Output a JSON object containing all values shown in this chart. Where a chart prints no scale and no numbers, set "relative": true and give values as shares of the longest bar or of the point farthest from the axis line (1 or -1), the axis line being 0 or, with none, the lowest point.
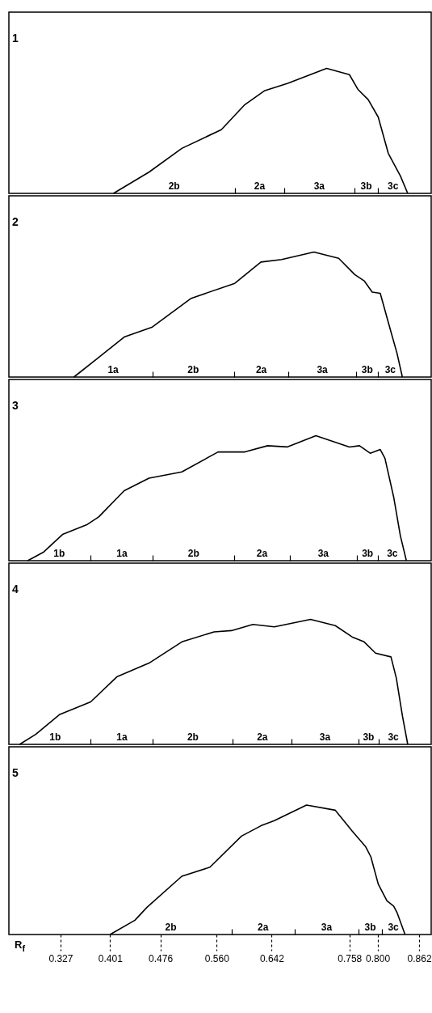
{
  "chart_data": [
    {
      "type": "line",
      "title": "1",
      "relative": true,
      "color": "#000000",
      "xlim": [
        0.25,
        0.88
      ],
      "tick_labels": false,
      "xticks": [
        {
          "value": 0.587,
          "label": null
        },
        {
          "value": 0.661,
          "label": null
        },
        {
          "value": 0.765,
          "label": null
        },
        {
          "value": 0.801,
          "label": null
        }
      ],
      "x": [
        0.406,
        0.459,
        0.508,
        0.567,
        0.602,
        0.631,
        0.666,
        0.724,
        0.758,
        0.771,
        0.786,
        0.801,
        0.816,
        0.834,
        0.845
      ],
      "values": [
        0,
        0.17,
        0.36,
        0.51,
        0.71,
        0.82,
        0.88,
        1,
        0.95,
        0.83,
        0.75,
        0.61,
        0.32,
        0.14,
        0
      ],
      "annotations": [
        "2b",
        "2a",
        "3a",
        "3b",
        "3c"
      ]
    },
    {
      "type": "line",
      "title": "2",
      "relative": true,
      "color": "#000000",
      "xlim": [
        0.25,
        0.88
      ],
      "tick_labels": false,
      "xticks": [
        {
          "value": 0.464,
          "label": null
        },
        {
          "value": 0.586,
          "label": null
        },
        {
          "value": 0.667,
          "label": null
        },
        {
          "value": 0.768,
          "label": null
        },
        {
          "value": 0.801,
          "label": null
        }
      ],
      "x": [
        0.347,
        0.38,
        0.422,
        0.464,
        0.522,
        0.587,
        0.626,
        0.657,
        0.705,
        0.742,
        0.766,
        0.78,
        0.792,
        0.804,
        0.819,
        0.829,
        0.837
      ],
      "values": [
        0,
        0.14,
        0.32,
        0.4,
        0.63,
        0.75,
        0.92,
        0.94,
        1,
        0.95,
        0.82,
        0.77,
        0.68,
        0.67,
        0.38,
        0.19,
        0
      ],
      "annotations": [
        "1a",
        "2b",
        "2a",
        "3a",
        "3b",
        "3c"
      ]
    },
    {
      "type": "line",
      "title": "3",
      "relative": true,
      "color": "#000000",
      "xlim": [
        0.25,
        0.88
      ],
      "tick_labels": false,
      "xticks": [
        {
          "value": 0.372,
          "label": null
        },
        {
          "value": 0.465,
          "label": null
        },
        {
          "value": 0.586,
          "label": null
        },
        {
          "value": 0.669,
          "label": null
        },
        {
          "value": 0.769,
          "label": null
        },
        {
          "value": 0.801,
          "label": null
        }
      ],
      "x": [
        0.278,
        0.302,
        0.33,
        0.367,
        0.384,
        0.422,
        0.459,
        0.508,
        0.562,
        0.602,
        0.636,
        0.665,
        0.708,
        0.758,
        0.773,
        0.789,
        0.804,
        0.811,
        0.824,
        0.834,
        0.843
      ],
      "values": [
        0,
        0.07,
        0.21,
        0.29,
        0.35,
        0.56,
        0.66,
        0.71,
        0.87,
        0.87,
        0.92,
        0.91,
        1,
        0.91,
        0.92,
        0.86,
        0.89,
        0.82,
        0.51,
        0.2,
        0
      ],
      "annotations": [
        "1b",
        "1a",
        "2b",
        "2a",
        "3a",
        "3b",
        "3c"
      ]
    },
    {
      "type": "line",
      "title": "4",
      "relative": true,
      "color": "#000000",
      "xlim": [
        0.25,
        0.88
      ],
      "tick_labels": false,
      "xticks": [
        {
          "value": 0.372,
          "label": null
        },
        {
          "value": 0.465,
          "label": null
        },
        {
          "value": 0.584,
          "label": null
        },
        {
          "value": 0.672,
          "label": null
        },
        {
          "value": 0.771,
          "label": null
        },
        {
          "value": 0.802,
          "label": null
        }
      ],
      "x": [
        0.266,
        0.29,
        0.326,
        0.372,
        0.411,
        0.459,
        0.508,
        0.556,
        0.582,
        0.614,
        0.646,
        0.7,
        0.737,
        0.762,
        0.78,
        0.797,
        0.82,
        0.828,
        0.837,
        0.845
      ],
      "values": [
        0,
        0.08,
        0.24,
        0.34,
        0.54,
        0.65,
        0.82,
        0.9,
        0.91,
        0.96,
        0.94,
        1,
        0.95,
        0.86,
        0.82,
        0.73,
        0.7,
        0.53,
        0.23,
        0
      ],
      "annotations": [
        "1b",
        "1a",
        "2b",
        "2a",
        "3a",
        "3b",
        "3c"
      ]
    },
    {
      "type": "line",
      "title": "5",
      "xlabel": "R$_{f}$",
      "relative": true,
      "color": "#000000",
      "xlim": [
        0.25,
        0.88
      ],
      "xticks": [
        0.327,
        0.401,
        0.476,
        {
          "value": 0.56,
          "label": "0.560"
        },
        {
          "value": 0.582,
          "label": null
        },
        0.642,
        {
          "value": 0.676,
          "label": null
        },
        0.758,
        {
          "value": 0.772,
          "label": null
        },
        {
          "value": 0.8,
          "label": "0.800"
        },
        {
          "value": 0.806,
          "label": null
        },
        0.862
      ],
      "tick_labels": "x",
      "x": [
        0.401,
        0.438,
        0.456,
        0.508,
        0.55,
        0.597,
        0.626,
        0.646,
        0.694,
        0.737,
        0.762,
        0.782,
        0.79,
        0.801,
        0.814,
        0.824,
        0.829,
        0.841
      ],
      "values": [
        0,
        0.11,
        0.21,
        0.45,
        0.52,
        0.76,
        0.84,
        0.88,
        1,
        0.96,
        0.8,
        0.68,
        0.6,
        0.39,
        0.26,
        0.22,
        0.17,
        0
      ],
      "annotations": [
        "2b",
        "2a",
        "3a",
        "3b",
        "3c"
      ]
    }
  ]
}
